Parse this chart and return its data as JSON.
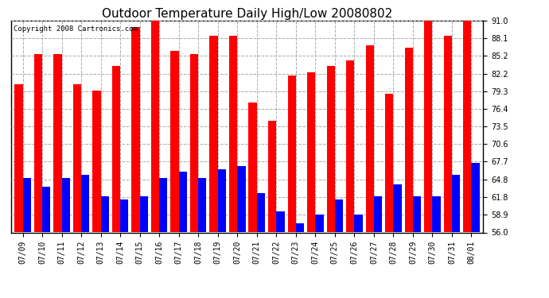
{
  "title": "Outdoor Temperature Daily High/Low 20080802",
  "copyright": "Copyright 2008 Cartronics.com",
  "dates": [
    "07/09",
    "07/10",
    "07/11",
    "07/12",
    "07/13",
    "07/14",
    "07/15",
    "07/16",
    "07/17",
    "07/18",
    "07/19",
    "07/20",
    "07/21",
    "07/22",
    "07/23",
    "07/24",
    "07/25",
    "07/26",
    "07/27",
    "07/28",
    "07/29",
    "07/30",
    "07/31",
    "08/01"
  ],
  "highs": [
    80.5,
    85.5,
    85.5,
    80.5,
    79.5,
    83.5,
    90.0,
    91.5,
    86.0,
    85.5,
    88.5,
    88.5,
    77.5,
    74.5,
    82.0,
    82.5,
    83.5,
    84.5,
    87.0,
    79.0,
    86.5,
    91.0,
    88.5,
    91.0
  ],
  "lows": [
    65.0,
    63.5,
    65.0,
    65.5,
    62.0,
    61.5,
    62.0,
    65.0,
    66.0,
    65.0,
    66.5,
    67.0,
    62.5,
    59.5,
    57.5,
    59.0,
    61.5,
    59.0,
    62.0,
    64.0,
    62.0,
    62.0,
    65.5,
    67.5
  ],
  "ymin": 56.0,
  "ymax": 91.0,
  "yticks": [
    56.0,
    58.9,
    61.8,
    64.8,
    67.7,
    70.6,
    73.5,
    76.4,
    79.3,
    82.2,
    85.2,
    88.1,
    91.0
  ],
  "bar_width": 0.42,
  "high_color": "#ff0000",
  "low_color": "#0000ff",
  "bg_color": "#ffffff",
  "grid_color": "#aaaaaa",
  "title_fontsize": 11,
  "tick_fontsize": 7,
  "copyright_fontsize": 6.5
}
